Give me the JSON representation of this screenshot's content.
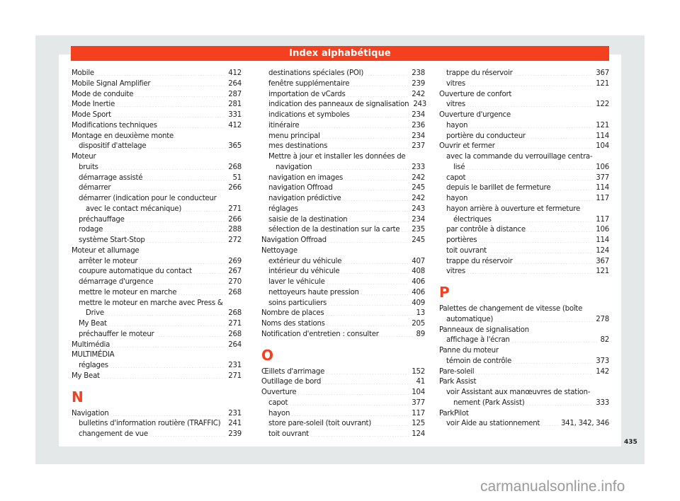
{
  "header": {
    "title": "Index alphabétique"
  },
  "page_number": "435",
  "watermark": "carmanualsonline.info",
  "colors": {
    "accent": "#f4401e",
    "frame": "#e5e8e8",
    "text": "#222222"
  },
  "columns": [
    [
      {
        "t": "Mobile",
        "p": "412",
        "i": 0
      },
      {
        "t": "Mobile Signal Amplifier",
        "p": "264",
        "i": 0
      },
      {
        "t": "Mode de conduite",
        "p": "287",
        "i": 0
      },
      {
        "t": "Mode Inertie",
        "p": "281",
        "i": 0
      },
      {
        "t": "Mode Sport",
        "p": "331",
        "i": 0
      },
      {
        "t": "Modifications techniques",
        "p": "412",
        "i": 0
      },
      {
        "t": "Montage en deuxième monte",
        "p": "",
        "i": 0
      },
      {
        "t": "dispositif d'attelage",
        "p": "365",
        "i": 1
      },
      {
        "t": "Moteur",
        "p": "",
        "i": 0
      },
      {
        "t": "bruits",
        "p": "268",
        "i": 1
      },
      {
        "t": "démarrage assisté",
        "p": "51",
        "i": 1
      },
      {
        "t": "démarrer",
        "p": "266",
        "i": 1
      },
      {
        "t": "démarrer (indication pour le conducteur",
        "p": "",
        "i": 1
      },
      {
        "t": "avec le contact mécanique)",
        "p": "271",
        "i": 2
      },
      {
        "t": "préchauffage",
        "p": "266",
        "i": 1
      },
      {
        "t": "rodage",
        "p": "288",
        "i": 1
      },
      {
        "t": "système Start-Stop",
        "p": "272",
        "i": 1
      },
      {
        "t": "Moteur et allumage",
        "p": "",
        "i": 0
      },
      {
        "t": "arrêter le moteur",
        "p": "269",
        "i": 1
      },
      {
        "t": "coupure automatique du contact",
        "p": "267",
        "i": 1
      },
      {
        "t": "démarrage d'urgence",
        "p": "270",
        "i": 1
      },
      {
        "t": "mettre le moteur en marche",
        "p": "268",
        "i": 1
      },
      {
        "t": "mettre le moteur en marche avec Press &",
        "p": "",
        "i": 1
      },
      {
        "t": "Drive",
        "p": "268",
        "i": 2
      },
      {
        "t": "My Beat",
        "p": "271",
        "i": 1
      },
      {
        "t": "préchauffer le moteur",
        "p": "268",
        "i": 1
      },
      {
        "t": "Multimédia",
        "p": "264",
        "i": 0
      },
      {
        "t": "MULTIMÉDIA",
        "p": "",
        "i": 0
      },
      {
        "t": "réglages",
        "p": "231",
        "i": 1
      },
      {
        "t": "My Beat",
        "p": "271",
        "i": 0
      },
      {
        "h": "N"
      },
      {
        "t": "Navigation",
        "p": "231",
        "i": 0
      },
      {
        "t": "bulletins d'information routière (TRAFFIC)",
        "p": "241",
        "i": 1
      },
      {
        "t": "changement de vue",
        "p": "239",
        "i": 1
      }
    ],
    [
      {
        "t": "destinations spéciales (POI)",
        "p": "238",
        "i": 1
      },
      {
        "t": "fenêtre supplémentaire",
        "p": "239",
        "i": 1
      },
      {
        "t": "importation de vCards",
        "p": "242",
        "i": 1
      },
      {
        "t": "indication des panneaux de signalisation",
        "p": "243",
        "i": 1
      },
      {
        "t": "indications et symboles",
        "p": "234",
        "i": 1
      },
      {
        "t": "itinéraire",
        "p": "236",
        "i": 1
      },
      {
        "t": "menu principal",
        "p": "234",
        "i": 1
      },
      {
        "t": "mes destinations",
        "p": "237",
        "i": 1
      },
      {
        "t": "Mettre à jour et installer les données de",
        "p": "",
        "i": 1
      },
      {
        "t": "navigation",
        "p": "233",
        "i": 2
      },
      {
        "t": "navigation en images",
        "p": "242",
        "i": 1
      },
      {
        "t": "navigation Offroad",
        "p": "245",
        "i": 1
      },
      {
        "t": "navigation prédictive",
        "p": "242",
        "i": 1
      },
      {
        "t": "réglages",
        "p": "243",
        "i": 1
      },
      {
        "t": "saisie de la destination",
        "p": "234",
        "i": 1
      },
      {
        "t": "sélection de la destination sur la carte",
        "p": "235",
        "i": 1
      },
      {
        "t": "Navigation Offroad",
        "p": "245",
        "i": 0
      },
      {
        "t": "Nettoyage",
        "p": "",
        "i": 0
      },
      {
        "t": "extérieur du véhicule",
        "p": "407",
        "i": 1
      },
      {
        "t": "intérieur du véhicule",
        "p": "408",
        "i": 1
      },
      {
        "t": "laver le véhicule",
        "p": "406",
        "i": 1
      },
      {
        "t": "nettoyeurs haute pression",
        "p": "406",
        "i": 1
      },
      {
        "t": "soins particuliers",
        "p": "409",
        "i": 1
      },
      {
        "t": "Nombre de places",
        "p": "13",
        "i": 0
      },
      {
        "t": "Noms des stations",
        "p": "205",
        "i": 0
      },
      {
        "t": "Notification d'entretien : consulter",
        "p": "89",
        "i": 0
      },
      {
        "h": "O"
      },
      {
        "t": "Œillets d'arrimage",
        "p": "152",
        "i": 0
      },
      {
        "t": "Outillage de bord",
        "p": "41",
        "i": 0
      },
      {
        "t": "Ouverture",
        "p": "104",
        "i": 0
      },
      {
        "t": "capot",
        "p": "377",
        "i": 1
      },
      {
        "t": "hayon",
        "p": "117",
        "i": 1
      },
      {
        "t": "store pare-soleil (toit ouvrant)",
        "p": "125",
        "i": 1
      },
      {
        "t": "toit ouvrant",
        "p": "124",
        "i": 1
      }
    ],
    [
      {
        "t": "trappe du réservoir",
        "p": "367",
        "i": 1
      },
      {
        "t": "vitres",
        "p": "121",
        "i": 1
      },
      {
        "t": "Ouverture de confort",
        "p": "",
        "i": 0
      },
      {
        "t": "vitres",
        "p": "122",
        "i": 1
      },
      {
        "t": "Ouverture d'urgence",
        "p": "",
        "i": 0
      },
      {
        "t": "hayon",
        "p": "121",
        "i": 1
      },
      {
        "t": "portière du conducteur",
        "p": "114",
        "i": 1
      },
      {
        "t": "Ouvrir et fermer",
        "p": "104",
        "i": 0
      },
      {
        "t": "avec la commande du verrouillage centra-",
        "p": "",
        "i": 1
      },
      {
        "t": "lisé",
        "p": "106",
        "i": 2
      },
      {
        "t": "capot",
        "p": "377",
        "i": 1
      },
      {
        "t": "depuis le barillet de fermeture",
        "p": "114",
        "i": 1
      },
      {
        "t": "hayon",
        "p": "117",
        "i": 1
      },
      {
        "t": "hayon arrière à ouverture et fermeture",
        "p": "",
        "i": 1
      },
      {
        "t": "électriques",
        "p": "117",
        "i": 2
      },
      {
        "t": "par contrôle à distance",
        "p": "106",
        "i": 1
      },
      {
        "t": "portières",
        "p": "114",
        "i": 1
      },
      {
        "t": "toit ouvrant",
        "p": "124",
        "i": 1
      },
      {
        "t": "trappe du réservoir",
        "p": "367",
        "i": 1
      },
      {
        "t": "vitres",
        "p": "121",
        "i": 1
      },
      {
        "h": "P"
      },
      {
        "t": "Palettes de changement de vitesse (boîte",
        "p": "",
        "i": 0
      },
      {
        "t": "automatique)",
        "p": "278",
        "i": 1
      },
      {
        "t": "Panneaux de signalisation",
        "p": "",
        "i": 0
      },
      {
        "t": "affichage à l'écran",
        "p": "82",
        "i": 1
      },
      {
        "t": "Panne du moteur",
        "p": "",
        "i": 0
      },
      {
        "t": "témoin de contrôle",
        "p": "373",
        "i": 1
      },
      {
        "t": "Pare-soleil",
        "p": "142",
        "i": 0
      },
      {
        "t": "Park Assist",
        "p": "",
        "i": 0
      },
      {
        "t": "voir Assistant aux manœuvres de station-",
        "p": "",
        "i": 1
      },
      {
        "t": "nement (Park Assist)",
        "p": "333",
        "i": 2
      },
      {
        "t": "ParkPilot",
        "p": "",
        "i": 0
      },
      {
        "t": "voir Aide au stationnement",
        "p": "341, 342, 346",
        "i": 1
      }
    ]
  ]
}
